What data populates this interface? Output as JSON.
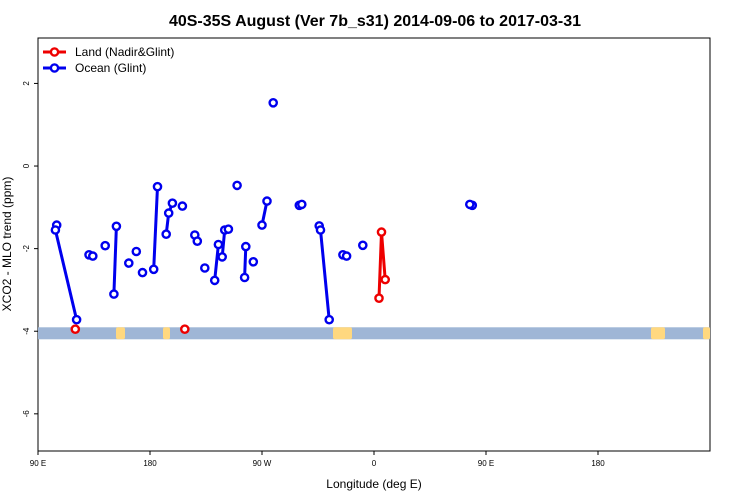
{
  "chart_data": {
    "type": "line",
    "title": "40S-35S August (Ver 7b_s31)   2014-09-06 to 2017-03-31",
    "xlabel": "Longitude (deg E)",
    "ylabel": "XCO2 - MLO trend (ppm)",
    "xlim": [
      -90,
      180
    ],
    "ylim": [
      -6.9,
      3.1
    ],
    "x_ticks": [
      {
        "value": -90,
        "label": "90 E"
      },
      {
        "value": -180,
        "label": "180"
      },
      {
        "value": -270,
        "label": "90 W"
      },
      {
        "value": -360,
        "label": "0"
      },
      {
        "value": -450,
        "label": "90 E"
      },
      {
        "value": -540,
        "label": "180"
      }
    ],
    "y_ticks": [
      {
        "value": 2,
        "label": "2"
      },
      {
        "value": 0,
        "label": "0"
      },
      {
        "value": -2,
        "label": "-2"
      },
      {
        "value": -4,
        "label": "-4"
      },
      {
        "value": -6,
        "label": "-6"
      }
    ],
    "legend": {
      "placement": "top-left"
    },
    "series": [
      {
        "name": "Land (Nadir&Glint)",
        "color": "#ee0000",
        "segments": [
          [
            {
              "x": 120,
              "y": -3.95
            }
          ],
          [
            {
              "x": 9,
              "y": -2.75
            },
            {
              "x": 6,
              "y": -1.6
            },
            {
              "x": 4,
              "y": -3.2
            }
          ],
          [
            {
              "x": -152,
              "y": -3.95
            }
          ]
        ]
      },
      {
        "name": "Ocean (Glint)",
        "color": "#0000ee",
        "segments": [
          [
            {
              "x": 79,
              "y": -0.95
            }
          ],
          [
            {
              "x": 77,
              "y": -0.93
            }
          ],
          [
            {
              "x": 105,
              "y": -1.43
            },
            {
              "x": 104,
              "y": -1.55
            },
            {
              "x": 121,
              "y": -3.72
            }
          ],
          [
            {
              "x": 131,
              "y": -2.15
            }
          ],
          [
            {
              "x": 134,
              "y": -2.18
            }
          ],
          [
            {
              "x": 144,
              "y": -1.93
            }
          ],
          [
            {
              "x": 151,
              "y": -3.1
            },
            {
              "x": 153,
              "y": -1.46
            }
          ],
          [
            {
              "x": 163,
              "y": -2.35
            }
          ],
          [
            {
              "x": 169,
              "y": -2.07
            }
          ],
          [
            {
              "x": 174,
              "y": -2.58
            }
          ],
          [
            {
              "x": -174,
              "y": -0.5
            },
            {
              "x": -177,
              "y": -2.5
            }
          ],
          [
            {
              "x": -167,
              "y": -1.65
            },
            {
              "x": -165,
              "y": -1.14
            },
            {
              "x": -162,
              "y": -0.9
            }
          ],
          [
            {
              "x": -154,
              "y": -0.97
            }
          ],
          [
            {
              "x": -144,
              "y": -1.67
            },
            {
              "x": -142,
              "y": -1.82
            }
          ],
          [
            {
              "x": -136,
              "y": -2.47
            }
          ],
          [
            {
              "x": -128,
              "y": -2.77
            },
            {
              "x": -125,
              "y": -1.9
            }
          ],
          [
            {
              "x": -122,
              "y": -2.2
            },
            {
              "x": -120,
              "y": -1.55
            }
          ],
          [
            {
              "x": -117,
              "y": -1.53
            }
          ],
          [
            {
              "x": -110,
              "y": -0.47
            }
          ],
          [
            {
              "x": -104,
              "y": -2.7
            },
            {
              "x": -103,
              "y": -1.95
            }
          ],
          [
            {
              "x": -97,
              "y": -2.32
            }
          ],
          [
            {
              "x": -90,
              "y": -1.43
            },
            {
              "x": -86,
              "y": -0.85
            }
          ],
          [
            {
              "x": -81,
              "y": 1.53
            }
          ],
          [
            {
              "x": -60,
              "y": -0.95
            }
          ],
          [
            {
              "x": -58,
              "y": -0.93
            }
          ],
          [
            {
              "x": -44,
              "y": -1.45
            },
            {
              "x": -43,
              "y": -1.55
            },
            {
              "x": -36,
              "y": -3.72
            }
          ],
          [
            {
              "x": -25,
              "y": -2.15
            }
          ],
          [
            {
              "x": -22,
              "y": -2.18
            }
          ],
          [
            {
              "x": -9,
              "y": -1.92
            }
          ]
        ]
      }
    ],
    "surface_band": {
      "y": -4.05,
      "ocean_color": "#9fb6d6",
      "land_color": "#ffd87f"
    }
  }
}
